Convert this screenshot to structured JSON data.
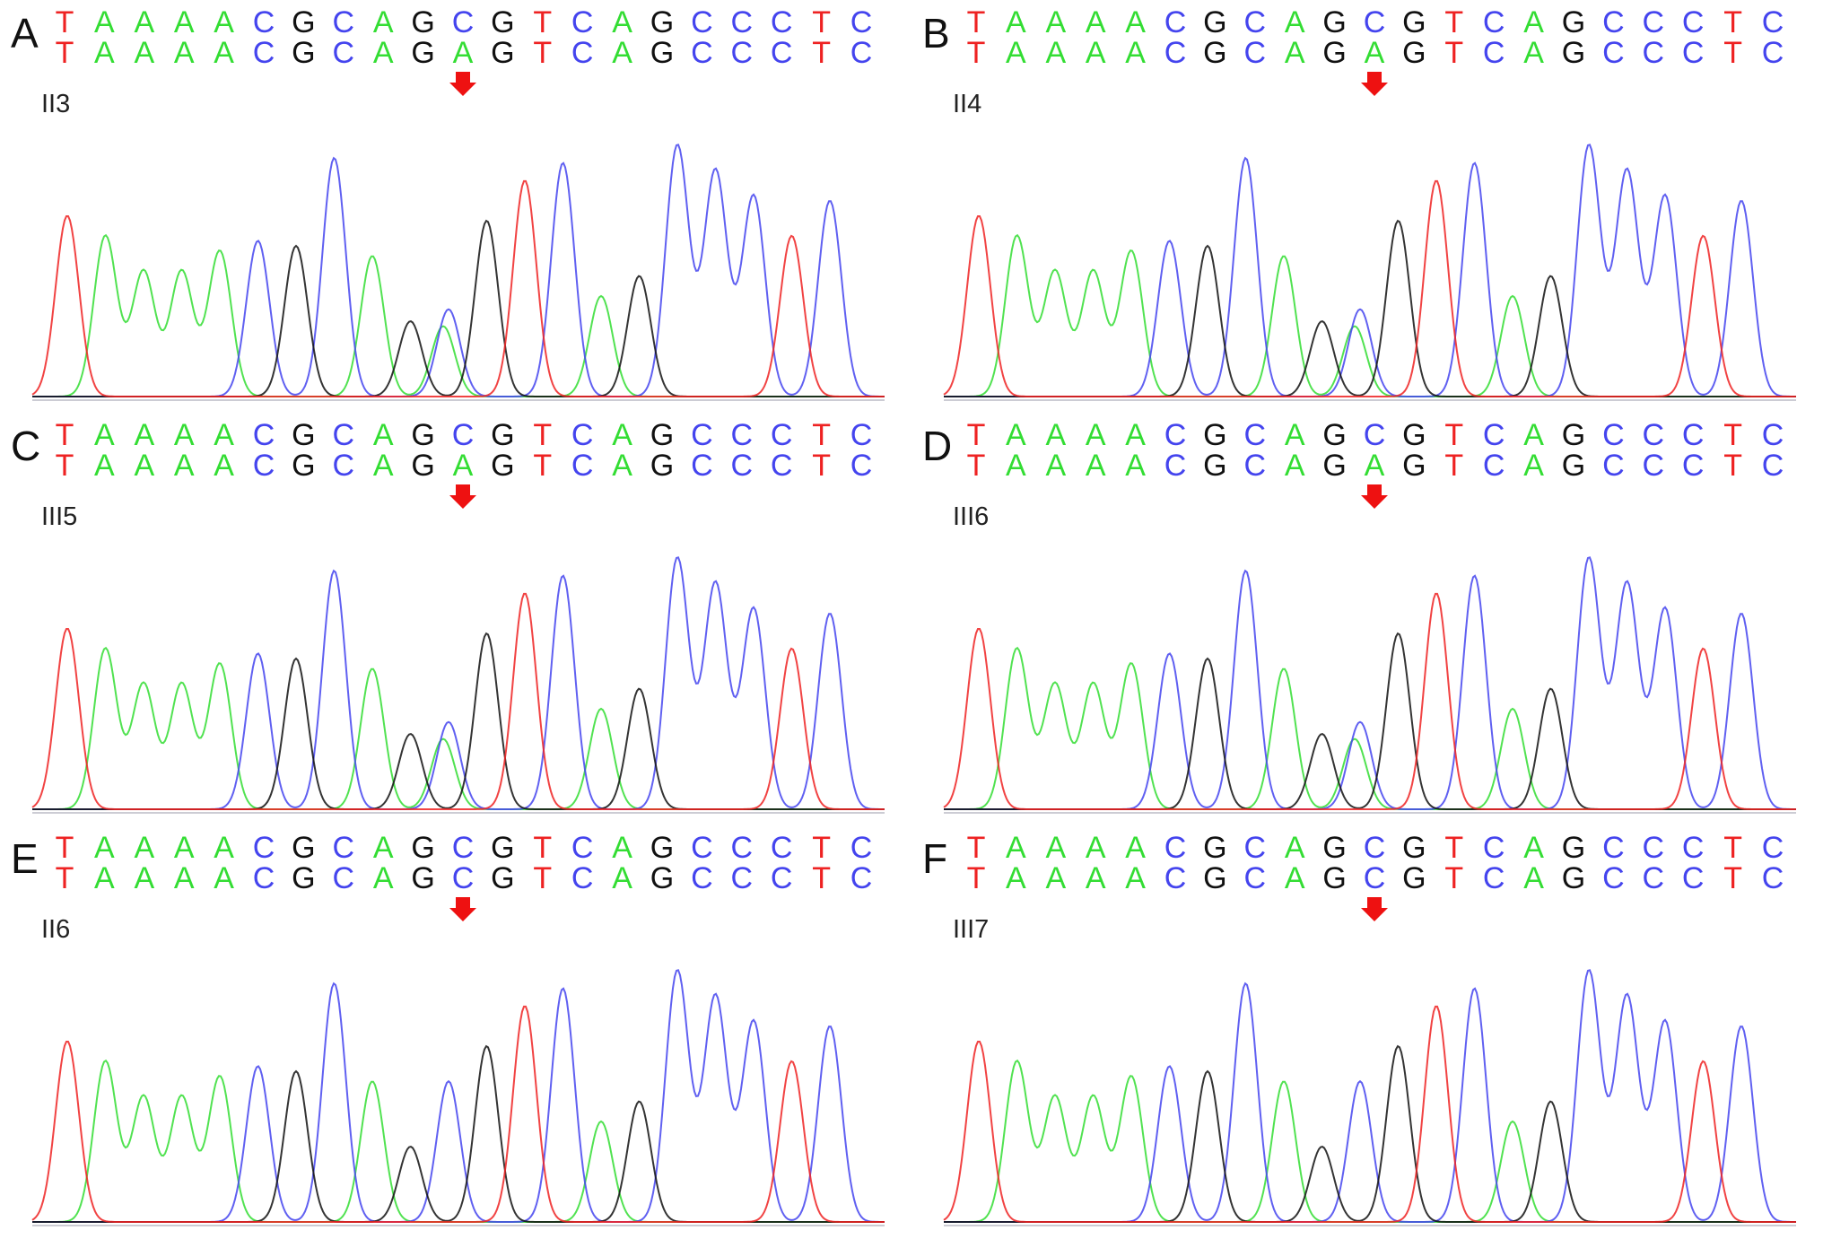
{
  "colors": {
    "A": "#33dd33",
    "C": "#4444ee",
    "G": "#111111",
    "T": "#ee2222",
    "marker": "#ee1111"
  },
  "panels": [
    {
      "letter": "A",
      "sample": "II3",
      "seq_top": [
        "T",
        "A",
        "A",
        "A",
        "A",
        "C",
        "G",
        "C",
        "A",
        "G",
        "C",
        "G",
        "T",
        "C",
        "A",
        "G",
        "C",
        "C",
        "C",
        "T",
        "C"
      ],
      "seq_bottom": [
        "T",
        "A",
        "A",
        "A",
        "A",
        "C",
        "G",
        "C",
        "A",
        "G",
        "A",
        "G",
        "T",
        "C",
        "A",
        "G",
        "C",
        "C",
        "C",
        "T",
        "C"
      ],
      "mutation_index": 10,
      "heterozygous": true
    },
    {
      "letter": "B",
      "sample": "II4",
      "seq_top": [
        "T",
        "A",
        "A",
        "A",
        "A",
        "C",
        "G",
        "C",
        "A",
        "G",
        "C",
        "G",
        "T",
        "C",
        "A",
        "G",
        "C",
        "C",
        "C",
        "T",
        "C"
      ],
      "seq_bottom": [
        "T",
        "A",
        "A",
        "A",
        "A",
        "C",
        "G",
        "C",
        "A",
        "G",
        "A",
        "G",
        "T",
        "C",
        "A",
        "G",
        "C",
        "C",
        "C",
        "T",
        "C"
      ],
      "mutation_index": 10,
      "heterozygous": true
    },
    {
      "letter": "C",
      "sample": "III5",
      "seq_top": [
        "T",
        "A",
        "A",
        "A",
        "A",
        "C",
        "G",
        "C",
        "A",
        "G",
        "C",
        "G",
        "T",
        "C",
        "A",
        "G",
        "C",
        "C",
        "C",
        "T",
        "C"
      ],
      "seq_bottom": [
        "T",
        "A",
        "A",
        "A",
        "A",
        "C",
        "G",
        "C",
        "A",
        "G",
        "A",
        "G",
        "T",
        "C",
        "A",
        "G",
        "C",
        "C",
        "C",
        "T",
        "C"
      ],
      "mutation_index": 10,
      "heterozygous": true
    },
    {
      "letter": "D",
      "sample": "III6",
      "seq_top": [
        "T",
        "A",
        "A",
        "A",
        "A",
        "C",
        "G",
        "C",
        "A",
        "G",
        "C",
        "G",
        "T",
        "C",
        "A",
        "G",
        "C",
        "C",
        "C",
        "T",
        "C"
      ],
      "seq_bottom": [
        "T",
        "A",
        "A",
        "A",
        "A",
        "C",
        "G",
        "C",
        "A",
        "G",
        "A",
        "G",
        "T",
        "C",
        "A",
        "G",
        "C",
        "C",
        "C",
        "T",
        "C"
      ],
      "mutation_index": 10,
      "heterozygous": true
    },
    {
      "letter": "E",
      "sample": "II6",
      "seq_top": [
        "T",
        "A",
        "A",
        "A",
        "A",
        "C",
        "G",
        "C",
        "A",
        "G",
        "C",
        "G",
        "T",
        "C",
        "A",
        "G",
        "C",
        "C",
        "C",
        "T",
        "C"
      ],
      "seq_bottom": [
        "T",
        "A",
        "A",
        "A",
        "A",
        "C",
        "G",
        "C",
        "A",
        "G",
        "C",
        "G",
        "T",
        "C",
        "A",
        "G",
        "C",
        "C",
        "C",
        "T",
        "C"
      ],
      "mutation_index": 10,
      "heterozygous": false
    },
    {
      "letter": "F",
      "sample": "III7",
      "seq_top": [
        "T",
        "A",
        "A",
        "A",
        "A",
        "C",
        "G",
        "C",
        "A",
        "G",
        "C",
        "G",
        "T",
        "C",
        "A",
        "G",
        "C",
        "C",
        "C",
        "T",
        "C"
      ],
      "seq_bottom": [
        "T",
        "A",
        "A",
        "A",
        "A",
        "C",
        "G",
        "C",
        "A",
        "G",
        "C",
        "G",
        "T",
        "C",
        "A",
        "G",
        "C",
        "C",
        "C",
        "T",
        "C"
      ],
      "mutation_index": 10,
      "heterozygous": false
    }
  ]
}
